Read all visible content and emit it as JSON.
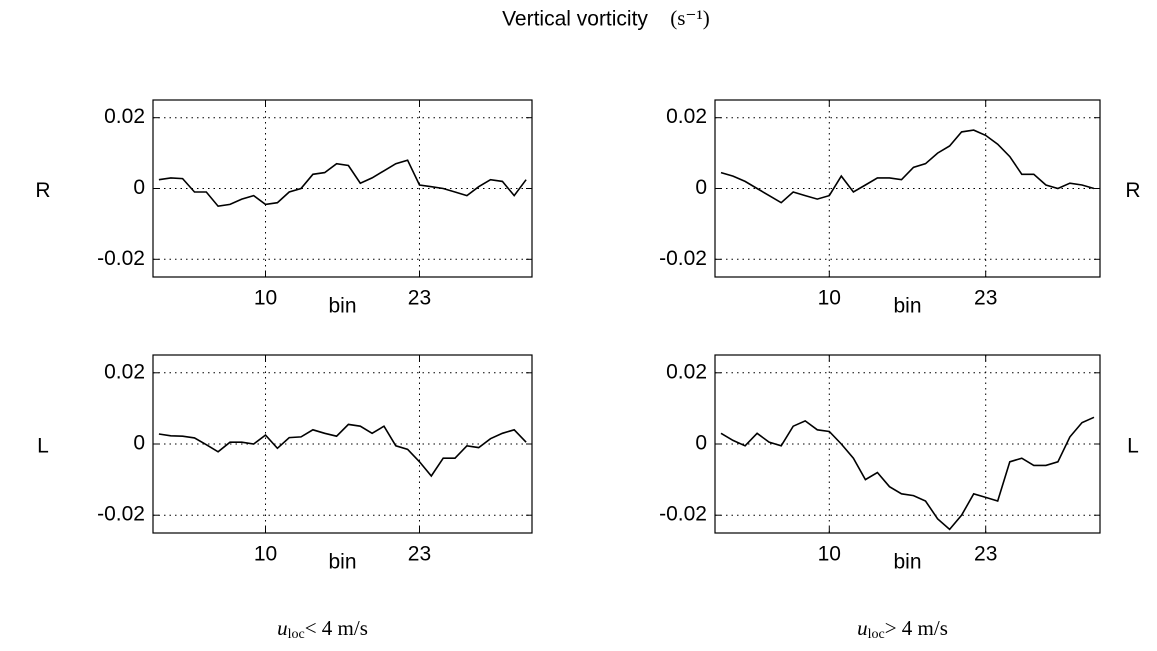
{
  "figure": {
    "title": "Vertical vorticity",
    "unit": "(s⁻¹)",
    "column_labels": [
      {
        "symbol": "u",
        "subscript": "loc",
        "text": "< 4 m/s"
      },
      {
        "symbol": "u",
        "subscript": "loc",
        "text": "> 4 m/s"
      }
    ]
  },
  "chart_data": [
    {
      "type": "line",
      "label": "R",
      "x_label": "bin",
      "color": "#000000",
      "grid": true,
      "x": [
        1,
        2,
        3,
        4,
        5,
        6,
        7,
        8,
        9,
        10,
        11,
        12,
        13,
        14,
        15,
        16,
        17,
        18,
        19,
        20,
        21,
        22,
        23,
        24,
        25,
        26,
        27,
        28,
        29,
        30,
        31,
        32
      ],
      "values": [
        0.0025,
        0.003,
        0.0028,
        -0.001,
        -0.001,
        -0.005,
        -0.0045,
        -0.003,
        -0.002,
        -0.0045,
        -0.004,
        -0.001,
        0,
        0.004,
        0.0045,
        0.007,
        0.0065,
        0.0015,
        0.003,
        0.005,
        0.007,
        0.008,
        0.001,
        0.0005,
        0,
        -0.001,
        -0.002,
        0.0005,
        0.0025,
        0.002,
        -0.002,
        0.0025
      ],
      "xlim": [
        0.5,
        32.5
      ],
      "xticks": [
        10,
        23
      ],
      "ylim": [
        -0.025,
        0.025
      ],
      "yticks": [
        -0.02,
        0,
        0.02
      ]
    },
    {
      "type": "line",
      "label": "R",
      "x_label": "bin",
      "color": "#000000",
      "grid": true,
      "x": [
        1,
        2,
        3,
        4,
        5,
        6,
        7,
        8,
        9,
        10,
        11,
        12,
        13,
        14,
        15,
        16,
        17,
        18,
        19,
        20,
        21,
        22,
        23,
        24,
        25,
        26,
        27,
        28,
        29,
        30,
        31,
        32
      ],
      "values": [
        0.0045,
        0.0035,
        0.002,
        0,
        -0.002,
        -0.004,
        -0.001,
        -0.002,
        -0.003,
        -0.002,
        0.0035,
        -0.001,
        0.001,
        0.003,
        0.003,
        0.0025,
        0.006,
        0.007,
        0.01,
        0.012,
        0.016,
        0.0165,
        0.015,
        0.0125,
        0.009,
        0.004,
        0.004,
        0.001,
        0,
        0.0015,
        0.001,
        0
      ],
      "xlim": [
        0.5,
        32.5
      ],
      "xticks": [
        10,
        23
      ],
      "ylim": [
        -0.025,
        0.025
      ],
      "yticks": [
        -0.02,
        0,
        0.02
      ]
    },
    {
      "type": "line",
      "label": "L",
      "x_label": "bin",
      "color": "#000000",
      "grid": true,
      "x": [
        1,
        2,
        3,
        4,
        5,
        6,
        7,
        8,
        9,
        10,
        11,
        12,
        13,
        14,
        15,
        16,
        17,
        18,
        19,
        20,
        21,
        22,
        23,
        24,
        25,
        26,
        27,
        28,
        29,
        30,
        31,
        32
      ],
      "values": [
        0.0028,
        0.0023,
        0.0022,
        0.0017,
        -0.0002,
        -0.0022,
        0.0005,
        0.0005,
        0,
        0.0025,
        -0.0012,
        0.0018,
        0.002,
        0.004,
        0.003,
        0.0022,
        0.0055,
        0.005,
        0.003,
        0.005,
        -0.0005,
        -0.0015,
        -0.005,
        -0.009,
        -0.004,
        -0.004,
        -0.0005,
        -0.001,
        0.0015,
        0.003,
        0.004,
        0.0005
      ],
      "xlim": [
        0.5,
        32.5
      ],
      "xticks": [
        10,
        23
      ],
      "ylim": [
        -0.025,
        0.025
      ],
      "yticks": [
        -0.02,
        0,
        0.02
      ]
    },
    {
      "type": "line",
      "label": "L",
      "x_label": "bin",
      "color": "#000000",
      "grid": true,
      "x": [
        1,
        2,
        3,
        4,
        5,
        6,
        7,
        8,
        9,
        10,
        11,
        12,
        13,
        14,
        15,
        16,
        17,
        18,
        19,
        20,
        21,
        22,
        23,
        24,
        25,
        26,
        27,
        28,
        29,
        30,
        31,
        32
      ],
      "values": [
        0.003,
        0.001,
        -0.0005,
        0.003,
        0.0005,
        -0.0005,
        0.005,
        0.0065,
        0.004,
        0.0035,
        0,
        -0.004,
        -0.01,
        -0.008,
        -0.012,
        -0.014,
        -0.0145,
        -0.016,
        -0.021,
        -0.024,
        -0.02,
        -0.014,
        -0.015,
        -0.016,
        -0.005,
        -0.004,
        -0.006,
        -0.006,
        -0.005,
        0.002,
        0.006,
        0.0075
      ],
      "xlim": [
        0.5,
        32.5
      ],
      "xticks": [
        10,
        23
      ],
      "ylim": [
        -0.025,
        0.025
      ],
      "yticks": [
        -0.02,
        0,
        0.02
      ]
    }
  ]
}
